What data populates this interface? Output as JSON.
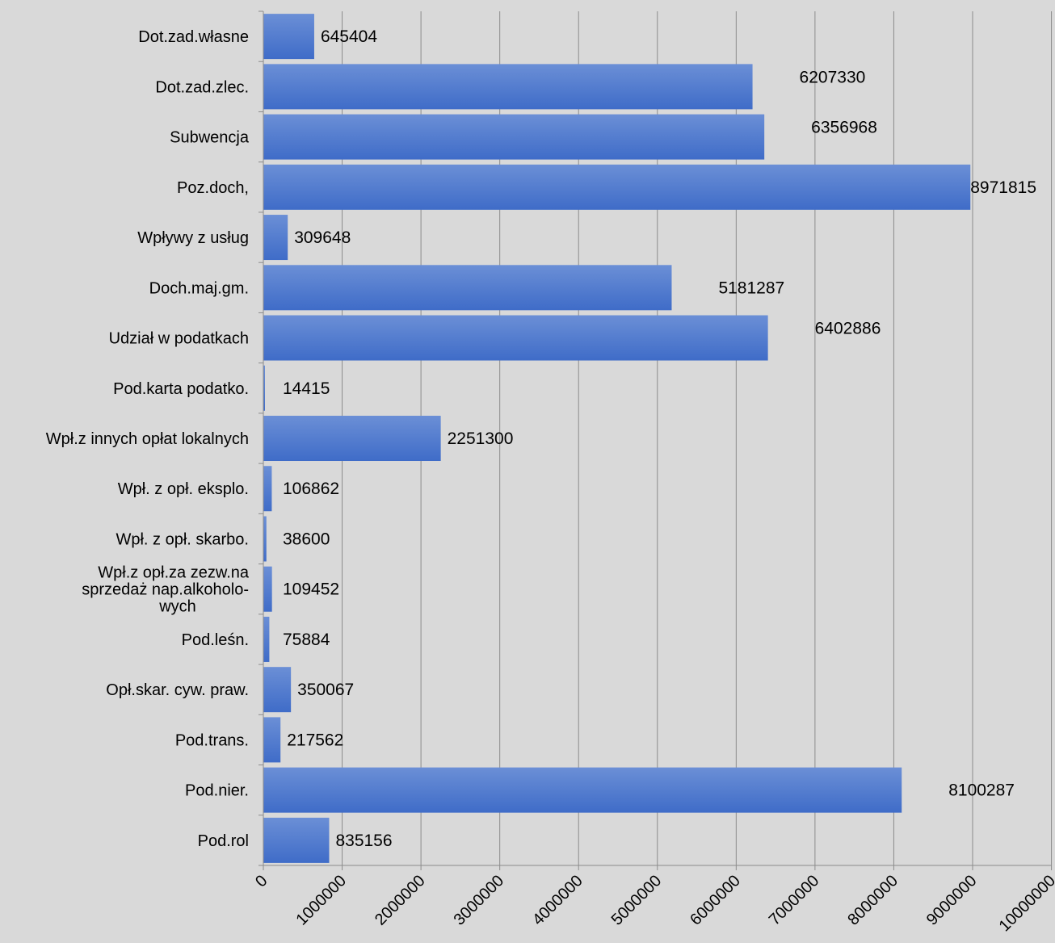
{
  "chart_data": {
    "type": "bar",
    "orientation": "horizontal",
    "categories": [
      "Dot.zad.własne",
      "Dot.zad.zlec.",
      "Subwencja",
      "Poz.doch,",
      "Wpływy z usług",
      "Doch.maj.gm.",
      "Udział w podatkach",
      "Pod.karta podatko.",
      "Wpł.z innych opłat lokalnych",
      "Wpł. z opł. eksplo.",
      "Wpł. z opł. skarbo.",
      "Wpł.z opł.za zezw.na sprzedaż nap.alkoholo-wych",
      "Pod.leśn.",
      "Opł.skar. cyw. praw.",
      "Pod.trans.",
      "Pod.nier.",
      "Pod.rol"
    ],
    "category_lines": [
      [
        "Dot.zad.własne"
      ],
      [
        "Dot.zad.zlec."
      ],
      [
        "Subwencja"
      ],
      [
        "Poz.doch,"
      ],
      [
        "Wpływy z usług"
      ],
      [
        "Doch.maj.gm."
      ],
      [
        "Udział w podatkach"
      ],
      [
        "Pod.karta podatko."
      ],
      [
        "Wpł.z innych opłat lokalnych"
      ],
      [
        "Wpł. z opł. eksplo."
      ],
      [
        "Wpł. z opł. skarbo."
      ],
      [
        "Wpł.z opł.za zezw.na",
        "sprzedaż nap.alkoholo-",
        "wych"
      ],
      [
        "Pod.leśn."
      ],
      [
        "Opł.skar. cyw. praw."
      ],
      [
        "Pod.trans."
      ],
      [
        "Pod.nier."
      ],
      [
        "Pod.rol"
      ]
    ],
    "values": [
      645404,
      6207330,
      6356968,
      8971815,
      309648,
      5181287,
      6402886,
      14415,
      2251300,
      106862,
      38600,
      109452,
      75884,
      350067,
      217562,
      8100287,
      835156
    ],
    "value_labels": [
      "645404",
      "6207330",
      "6356968",
      "8971815",
      "309648",
      "5181287",
      "6402886",
      "14415",
      "2251300",
      "106862",
      "38600",
      "109452",
      "75884",
      "350067",
      "217562",
      "8100287",
      "835156"
    ],
    "xlim": [
      0,
      10000000
    ],
    "x_ticks": [
      0,
      1000000,
      2000000,
      3000000,
      4000000,
      5000000,
      6000000,
      7000000,
      8000000,
      9000000,
      10000000
    ],
    "x_tick_labels": [
      "0",
      "1000000",
      "2000000",
      "3000000",
      "4000000",
      "5000000",
      "6000000",
      "7000000",
      "8000000",
      "9000000",
      "10000000"
    ],
    "grid": "vertical",
    "legend": "none",
    "colors": {
      "plot_background": "#d9d9d9",
      "bar_top": "#6b8fd6",
      "bar_bottom": "#3f6cc8",
      "gridline": "#8c8c8c"
    }
  }
}
